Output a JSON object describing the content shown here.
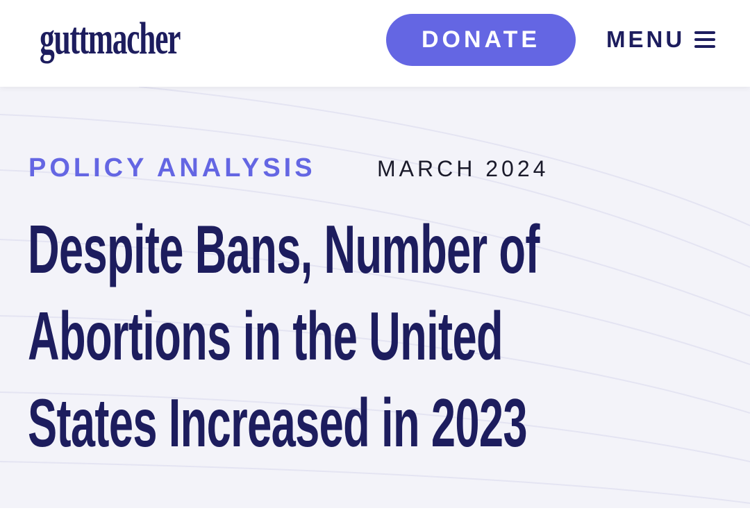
{
  "header": {
    "logo": "guttmacher",
    "donate": "DONATE",
    "menu": "MENU"
  },
  "hero": {
    "category": "POLICY ANALYSIS",
    "date": "MARCH 2024",
    "title_lines": [
      "Despite Bans, Number of",
      "Abortions in the United",
      "States Increased in 2023"
    ]
  }
}
